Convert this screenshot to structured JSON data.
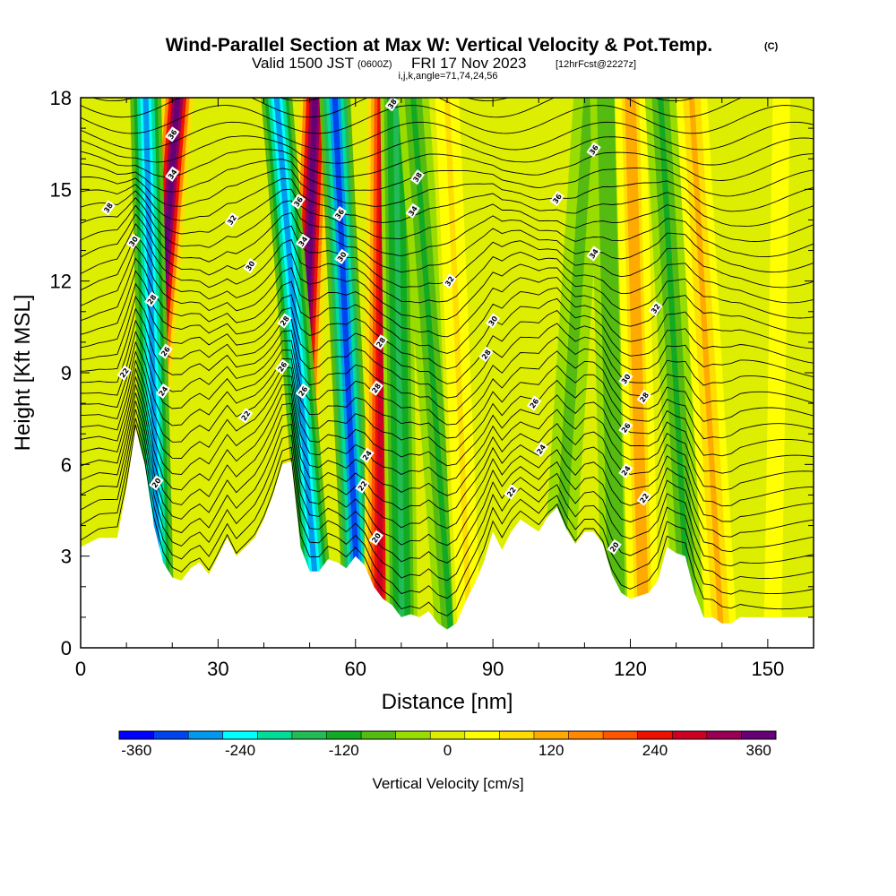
{
  "title": {
    "main": "Wind-Parallel Section at Max W: Vertical Velocity & Pot.Temp.",
    "copyright": "(C)",
    "valid_prefix": "Valid 1500 JST",
    "valid_utc": "(0600Z)",
    "valid_date": "FRI 17 Nov 2023",
    "forecast": "[12hrFcst@2227z]",
    "indices": "i,j,k,angle=71,74,24,56"
  },
  "chart_data": {
    "type": "heatmap",
    "xlabel": "Distance [nm]",
    "ylabel": "Height [Kft MSL]",
    "xlim": [
      0,
      160
    ],
    "ylim": [
      0,
      18
    ],
    "x_ticks": [
      0,
      30,
      60,
      90,
      120,
      150
    ],
    "y_ticks": [
      0,
      3,
      6,
      9,
      12,
      15,
      18
    ],
    "terrain": {
      "x": [
        0,
        4,
        8,
        10,
        12,
        14,
        16,
        18,
        20,
        22,
        24,
        26,
        28,
        30,
        32,
        34,
        36,
        38,
        40,
        42,
        44,
        46,
        48,
        50,
        52,
        54,
        56,
        58,
        60,
        62,
        64,
        66,
        68,
        70,
        72,
        74,
        76,
        78,
        80,
        82,
        84,
        86,
        88,
        90,
        92,
        94,
        96,
        98,
        100,
        102,
        104,
        106,
        108,
        110,
        112,
        114,
        116,
        118,
        120,
        122,
        124,
        126,
        128,
        130,
        132,
        134,
        136,
        138,
        140,
        142,
        144,
        146,
        148,
        150,
        152,
        154,
        156,
        158,
        160
      ],
      "height_kft": [
        3.3,
        3.6,
        3.6,
        5.2,
        7.2,
        6.0,
        4.0,
        2.8,
        2.3,
        2.2,
        2.6,
        2.8,
        2.4,
        3.0,
        3.6,
        3.0,
        3.3,
        3.6,
        4.2,
        5.0,
        6.0,
        6.1,
        3.3,
        2.5,
        2.5,
        2.9,
        2.8,
        2.6,
        3.0,
        2.7,
        2.0,
        1.6,
        1.4,
        1.0,
        1.1,
        1.0,
        1.2,
        0.8,
        0.6,
        0.8,
        1.5,
        2.1,
        2.8,
        3.8,
        3.2,
        3.8,
        4.2,
        4.0,
        3.8,
        4.3,
        4.6,
        3.9,
        3.4,
        3.8,
        3.8,
        3.4,
        2.4,
        1.8,
        1.6,
        1.7,
        1.8,
        2.2,
        3.3,
        3.1,
        3.0,
        1.8,
        1.0,
        1.0,
        0.8,
        0.8,
        1.0,
        1.0,
        1.0,
        1.0,
        1.0,
        1.0,
        1.0,
        1.0,
        1.0
      ]
    },
    "vertical_velocity_bands": [
      {
        "x_bottom": 11.8,
        "x_top": 21.2,
        "peak_cm_s": 360
      },
      {
        "x_bottom": 17.2,
        "x_top": 14.2,
        "peak_cm_s": -300
      },
      {
        "x_bottom": 46.8,
        "x_top": 51.2,
        "peak_cm_s": 380
      },
      {
        "x_bottom": 52.4,
        "x_top": 42.8,
        "peak_cm_s": -300
      },
      {
        "x_bottom": 61.0,
        "x_top": 55.5,
        "peak_cm_s": -320
      },
      {
        "x_bottom": 65.2,
        "x_top": 66.0,
        "peak_cm_s": 290
      },
      {
        "x_bottom": 70.2,
        "x_top": 68.8,
        "peak_cm_s": -160
      },
      {
        "x_bottom": 81.0,
        "x_top": 72.6,
        "peak_cm_s": -110
      },
      {
        "x_bottom": 85.0,
        "x_top": 80.0,
        "peak_cm_s": 60
      },
      {
        "x_bottom": 103.4,
        "x_top": 111.0,
        "peak_cm_s": -90
      },
      {
        "x_bottom": 117.2,
        "x_top": 114.6,
        "peak_cm_s": -100
      },
      {
        "x_bottom": 123.0,
        "x_top": 120.0,
        "peak_cm_s": 130
      },
      {
        "x_bottom": 133.0,
        "x_top": 126.6,
        "peak_cm_s": -110
      },
      {
        "x_bottom": 140.0,
        "x_top": 133.4,
        "peak_cm_s": 110
      },
      {
        "x_bottom": 151.0,
        "x_top": 153.0,
        "peak_cm_s": 40
      }
    ],
    "theta_contour_labels": [
      {
        "text": "38",
        "x": 6,
        "y": 14.4
      },
      {
        "text": "36",
        "x": 20,
        "y": 16.8
      },
      {
        "text": "34",
        "x": 20,
        "y": 15.5
      },
      {
        "text": "32",
        "x": 33,
        "y": 14.0
      },
      {
        "text": "30",
        "x": 11.5,
        "y": 13.3
      },
      {
        "text": "30",
        "x": 37,
        "y": 12.5
      },
      {
        "text": "28",
        "x": 15.5,
        "y": 11.4
      },
      {
        "text": "26",
        "x": 18.5,
        "y": 9.7
      },
      {
        "text": "22",
        "x": 9.5,
        "y": 9.0
      },
      {
        "text": "24",
        "x": 18,
        "y": 8.4
      },
      {
        "text": "22",
        "x": 36,
        "y": 7.6
      },
      {
        "text": "20",
        "x": 16.5,
        "y": 5.4
      },
      {
        "text": "36",
        "x": 47.5,
        "y": 14.6
      },
      {
        "text": "34",
        "x": 48.5,
        "y": 13.3
      },
      {
        "text": "28",
        "x": 44.5,
        "y": 10.7
      },
      {
        "text": "26",
        "x": 44,
        "y": 9.2
      },
      {
        "text": "26",
        "x": 48.5,
        "y": 8.4
      },
      {
        "text": "36",
        "x": 56.5,
        "y": 14.2
      },
      {
        "text": "30",
        "x": 57,
        "y": 12.8
      },
      {
        "text": "38",
        "x": 68,
        "y": 17.8
      },
      {
        "text": "38",
        "x": 73.5,
        "y": 15.4
      },
      {
        "text": "34",
        "x": 72.5,
        "y": 14.3
      },
      {
        "text": "32",
        "x": 80.5,
        "y": 12.0
      },
      {
        "text": "30",
        "x": 90,
        "y": 10.7
      },
      {
        "text": "28",
        "x": 65.5,
        "y": 10.0
      },
      {
        "text": "28",
        "x": 88.5,
        "y": 9.6
      },
      {
        "text": "28",
        "x": 64.5,
        "y": 8.5
      },
      {
        "text": "26",
        "x": 99,
        "y": 8.0
      },
      {
        "text": "24",
        "x": 62.5,
        "y": 6.3
      },
      {
        "text": "24",
        "x": 100.5,
        "y": 6.5
      },
      {
        "text": "22",
        "x": 61.5,
        "y": 5.3
      },
      {
        "text": "22",
        "x": 94,
        "y": 5.1
      },
      {
        "text": "20",
        "x": 64.5,
        "y": 3.6
      },
      {
        "text": "36",
        "x": 112,
        "y": 16.3
      },
      {
        "text": "36",
        "x": 104,
        "y": 14.7
      },
      {
        "text": "34",
        "x": 112,
        "y": 12.9
      },
      {
        "text": "32",
        "x": 125.5,
        "y": 11.1
      },
      {
        "text": "30",
        "x": 119,
        "y": 8.8
      },
      {
        "text": "28",
        "x": 123,
        "y": 8.2
      },
      {
        "text": "26",
        "x": 119,
        "y": 7.2
      },
      {
        "text": "24",
        "x": 119,
        "y": 5.8
      },
      {
        "text": "22",
        "x": 123,
        "y": 4.9
      },
      {
        "text": "20",
        "x": 116.5,
        "y": 3.3
      }
    ]
  },
  "colorbar": {
    "title": "Vertical Velocity [cm/s]",
    "min": -380,
    "max": 380,
    "labels": [
      "-360",
      "-240",
      "-120",
      "0",
      "120",
      "240",
      "360"
    ],
    "label_values": [
      -360,
      -240,
      -120,
      0,
      120,
      240,
      360
    ],
    "colors": [
      "#0000ff",
      "#0044ee",
      "#0099ee",
      "#00ffff",
      "#00dd99",
      "#22bb55",
      "#11aa22",
      "#55bb11",
      "#99dd00",
      "#ddee00",
      "#ffff00",
      "#ffdd00",
      "#ffaa00",
      "#ff8800",
      "#ff5500",
      "#ee1100",
      "#cc0022",
      "#990055",
      "#660077"
    ]
  }
}
